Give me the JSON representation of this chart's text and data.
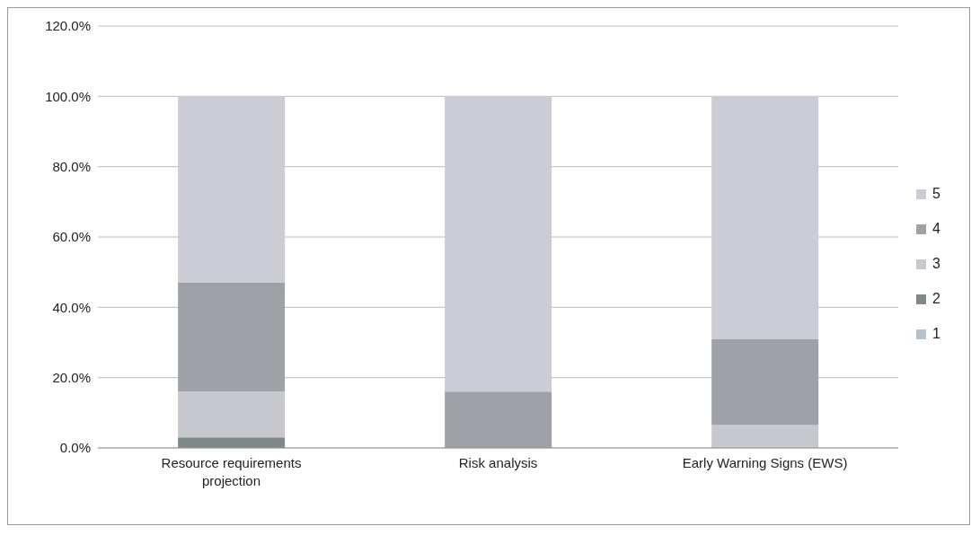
{
  "chart_data": {
    "type": "bar",
    "stacked": true,
    "categories": [
      "Resource requirements projection",
      "Risk analysis",
      "Early Warning Signs (EWS)"
    ],
    "series": [
      {
        "name": "1",
        "color": "#b8c0cc",
        "values": [
          0,
          0,
          0
        ]
      },
      {
        "name": "2",
        "color": "#7f8a88",
        "values": [
          3,
          0,
          0
        ]
      },
      {
        "name": "3",
        "color": "#c6c8ce",
        "values": [
          13,
          0,
          6.5
        ]
      },
      {
        "name": "4",
        "color": "#9ea2a6",
        "values": [
          31,
          16,
          24.5
        ]
      },
      {
        "name": "5",
        "color": "#ccccd6",
        "values": [
          53,
          84,
          69
        ]
      }
    ],
    "ylim": [
      0,
      120
    ],
    "yticks": [
      {
        "value": 0,
        "label": "0.0%"
      },
      {
        "value": 20,
        "label": "20.0%"
      },
      {
        "value": 40,
        "label": "40.0%"
      },
      {
        "value": 60,
        "label": "60.0%"
      },
      {
        "value": 80,
        "label": "80.0%"
      },
      {
        "value": 100,
        "label": "100.0%"
      },
      {
        "value": 120,
        "label": "120.0%"
      }
    ],
    "grid": "y",
    "legend": "right"
  }
}
